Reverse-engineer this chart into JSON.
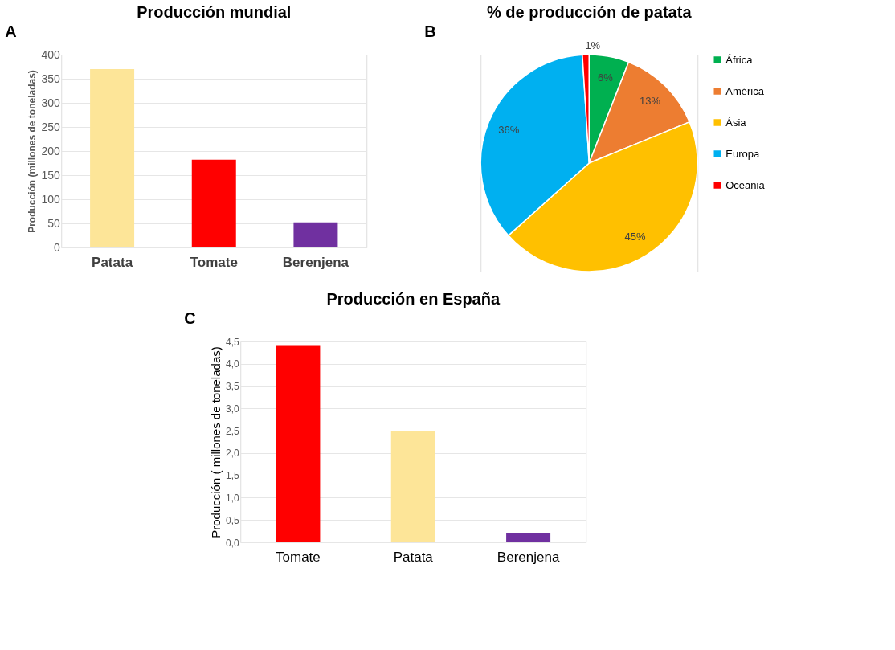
{
  "chart_data": [
    {
      "type": "bar",
      "title": "Producción mundial",
      "annotations": [
        "A"
      ],
      "ylabel": "Producción (millones de toneladas)",
      "categories": [
        "Patata",
        "Tomate",
        "Berenjena"
      ],
      "values": [
        370,
        182,
        52
      ],
      "colors": [
        "#fde598",
        "#ff0000",
        "#7030a0"
      ],
      "ylim": [
        0,
        400
      ],
      "yticks": [
        0,
        50,
        100,
        150,
        200,
        250,
        300,
        350,
        400
      ],
      "grid": "y"
    },
    {
      "type": "pie",
      "title": "% de producción de patata",
      "annotations": [
        "B"
      ],
      "categories": [
        "África",
        "América",
        "Ásia",
        "Europa",
        "Oceania"
      ],
      "values": [
        6,
        13,
        45,
        36,
        1
      ],
      "value_labels": [
        "6%",
        "13%",
        "45%",
        "36%",
        "1%"
      ],
      "colors": [
        "#00b050",
        "#ed7d31",
        "#ffc000",
        "#00b0f0",
        "#ff0000"
      ],
      "legend": "right"
    },
    {
      "type": "bar",
      "title": "Producción en España",
      "annotations": [
        "C"
      ],
      "ylabel": "Producción ( millones de  toneladas)",
      "categories": [
        "Tomate",
        "Patata",
        "Berenjena"
      ],
      "values": [
        4.4,
        2.5,
        0.2
      ],
      "colors": [
        "#ff0000",
        "#fde598",
        "#7030a0"
      ],
      "ylim": [
        0,
        4.5
      ],
      "yticks": [
        {
          "value": 0,
          "label": "0,0"
        },
        {
          "value": 0.5,
          "label": "0,5"
        },
        {
          "value": 1,
          "label": "1,0"
        },
        {
          "value": 1.5,
          "label": "1,5"
        },
        {
          "value": 2,
          "label": "2,0"
        },
        {
          "value": 2.5,
          "label": "2,5"
        },
        {
          "value": 3,
          "label": "3,0"
        },
        {
          "value": 3.5,
          "label": "3,5"
        },
        {
          "value": 4,
          "label": "4,0"
        },
        {
          "value": 4.5,
          "label": "4,5"
        }
      ],
      "grid": "y"
    }
  ]
}
